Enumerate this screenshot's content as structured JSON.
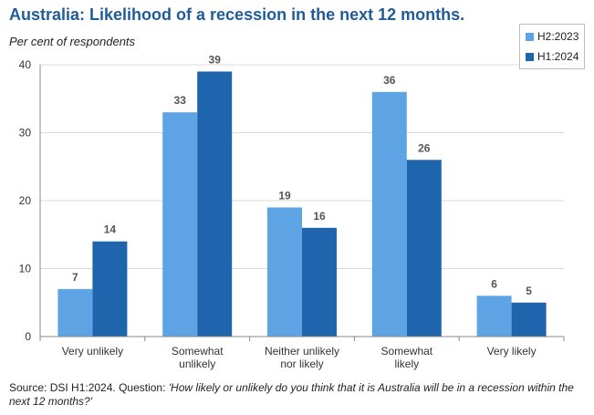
{
  "chart_data": {
    "type": "bar",
    "title": "Australia: Likelihood of a recession in the next 12 months.",
    "ylabel": "Per cent of respondents",
    "xlabel": "",
    "ylim": [
      0,
      40
    ],
    "yticks": [
      0,
      10,
      20,
      30,
      40
    ],
    "categories": [
      [
        "Very unlikely"
      ],
      [
        "Somewhat",
        "unlikely"
      ],
      [
        "Neither unlikely",
        "nor likely"
      ],
      [
        "Somewhat",
        "likely"
      ],
      [
        "Very likely"
      ]
    ],
    "series": [
      {
        "name": "H2:2023",
        "color": "#5ea3e3",
        "values": [
          7,
          33,
          19,
          36,
          6
        ]
      },
      {
        "name": "H1:2024",
        "color": "#1f65ad",
        "values": [
          14,
          39,
          16,
          26,
          5
        ]
      }
    ],
    "legend_position": "top-right",
    "grid": true
  },
  "source": {
    "prefix": "Source: DSI H1:2024. Question: ",
    "question": "'How likely or unlikely do you think that it is Australia will be in a recession within the next 12 months?'"
  }
}
